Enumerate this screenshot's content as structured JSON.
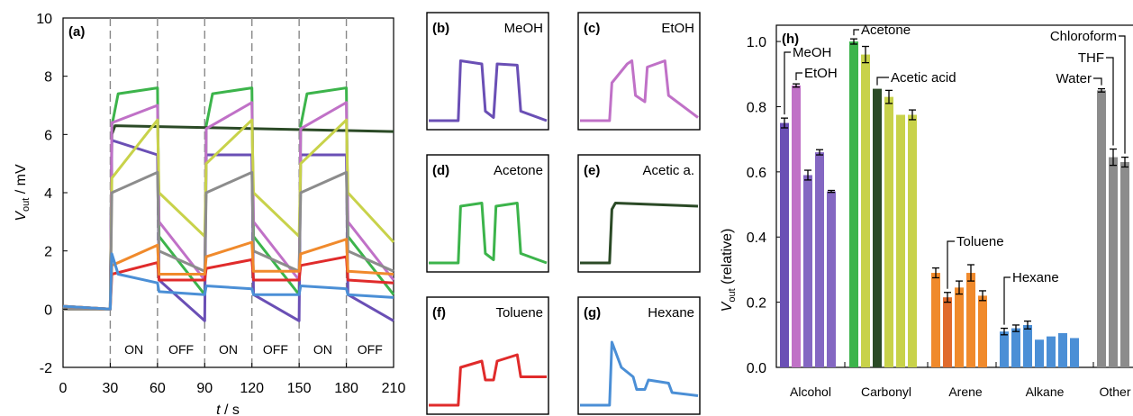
{
  "panel_a": {
    "label": "(a)",
    "ylabel_main": "V",
    "ylabel_sub": "out",
    "ylabel_unit": " / mV",
    "xlabel_main": "t",
    "xlabel_unit": " / s",
    "xticks": [
      "0",
      "30",
      "60",
      "90",
      "120",
      "150",
      "180",
      "210"
    ],
    "yticks": [
      "-2",
      "0",
      "2",
      "4",
      "6",
      "8",
      "10"
    ],
    "phases": [
      "ON",
      "OFF",
      "ON",
      "OFF",
      "ON",
      "OFF"
    ]
  },
  "small_panels": [
    {
      "label": "(b)",
      "name": "MeOH"
    },
    {
      "label": "(c)",
      "name": "EtOH"
    },
    {
      "label": "(d)",
      "name": "Acetone"
    },
    {
      "label": "(e)",
      "name": "Acetic a."
    },
    {
      "label": "(f)",
      "name": "Toluene"
    },
    {
      "label": "(g)",
      "name": "Hexane"
    }
  ],
  "panel_h": {
    "label": "(h)",
    "ylabel_main": "V",
    "ylabel_sub": "out",
    "ylabel_rest": " (relative)",
    "yticks": [
      "0.0",
      "0.2",
      "0.4",
      "0.6",
      "0.8",
      "1.0"
    ],
    "groups": [
      "Alcohol",
      "Carbonyl",
      "Arene",
      "Alkane",
      "Other"
    ],
    "annotations": [
      "MeOH",
      "EtOH",
      "Acetone",
      "Acetic acid",
      "Toluene",
      "Hexane",
      "Chloroform",
      "THF",
      "Water"
    ]
  },
  "chart_data": [
    {
      "type": "line",
      "title": "(a)",
      "xlabel": "t / s",
      "ylabel": "Vout / mV",
      "xlim": [
        0,
        210
      ],
      "ylim": [
        -2,
        10
      ],
      "grid": false,
      "note": "Vertical dashed lines mark ON/OFF switching every 30 s between 30 s and 210 s.",
      "series": [
        {
          "color": "#3cb44b",
          "values": [
            [
              0,
              0
            ],
            [
              30,
              0
            ],
            [
              31,
              6.3
            ],
            [
              35,
              7.4
            ],
            [
              60,
              7.6
            ],
            [
              61,
              2.5
            ],
            [
              90,
              0.5
            ],
            [
              91,
              6.3
            ],
            [
              95,
              7.4
            ],
            [
              120,
              7.6
            ],
            [
              121,
              2.5
            ],
            [
              150,
              0.5
            ],
            [
              151,
              6.3
            ],
            [
              155,
              7.4
            ],
            [
              180,
              7.6
            ],
            [
              181,
              2.5
            ],
            [
              210,
              0.5
            ]
          ]
        },
        {
          "color": "#2b4a26",
          "values": [
            [
              0,
              0.1
            ],
            [
              30,
              0
            ],
            [
              31,
              6.0
            ],
            [
              33,
              6.3
            ],
            [
              210,
              6.1
            ]
          ]
        },
        {
          "color": "#6a4fb5",
          "values": [
            [
              0,
              0
            ],
            [
              30,
              0
            ],
            [
              31,
              5.8
            ],
            [
              60,
              5.3
            ],
            [
              61,
              1
            ],
            [
              90,
              -0.4
            ],
            [
              91,
              5.3
            ],
            [
              120,
              5.3
            ],
            [
              121,
              0.5
            ],
            [
              150,
              -0.4
            ],
            [
              151,
              5.3
            ],
            [
              180,
              5.3
            ],
            [
              181,
              0.5
            ],
            [
              210,
              -0.4
            ]
          ]
        },
        {
          "color": "#c071c7",
          "values": [
            [
              0,
              0
            ],
            [
              30,
              0
            ],
            [
              31,
              6.4
            ],
            [
              60,
              7.0
            ],
            [
              61,
              3.0
            ],
            [
              90,
              1.0
            ],
            [
              91,
              6.2
            ],
            [
              120,
              7.1
            ],
            [
              121,
              3.0
            ],
            [
              150,
              1.0
            ],
            [
              151,
              6.2
            ],
            [
              180,
              7.1
            ],
            [
              181,
              3.0
            ],
            [
              210,
              1.0
            ]
          ]
        },
        {
          "color": "#c8d24a",
          "values": [
            [
              0,
              0
            ],
            [
              30,
              0
            ],
            [
              31,
              4.5
            ],
            [
              60,
              6.5
            ],
            [
              61,
              4.0
            ],
            [
              90,
              2.5
            ],
            [
              91,
              5.0
            ],
            [
              120,
              6.5
            ],
            [
              121,
              4.0
            ],
            [
              150,
              2.5
            ],
            [
              151,
              5.0
            ],
            [
              180,
              6.5
            ],
            [
              181,
              4.0
            ],
            [
              210,
              2.3
            ]
          ]
        },
        {
          "color": "#8c8c8c",
          "values": [
            [
              0,
              0
            ],
            [
              30,
              0
            ],
            [
              31,
              4.0
            ],
            [
              60,
              4.7
            ],
            [
              61,
              2.0
            ],
            [
              90,
              1.3
            ],
            [
              91,
              4.0
            ],
            [
              120,
              4.7
            ],
            [
              121,
              2.0
            ],
            [
              150,
              1.3
            ],
            [
              151,
              4.0
            ],
            [
              180,
              4.7
            ],
            [
              181,
              2.0
            ],
            [
              210,
              1.3
            ]
          ]
        },
        {
          "color": "#e02b2b",
          "values": [
            [
              0,
              0.1
            ],
            [
              30,
              0
            ],
            [
              31,
              1.2
            ],
            [
              60,
              1.6
            ],
            [
              61,
              1.0
            ],
            [
              90,
              1.0
            ],
            [
              91,
              1.4
            ],
            [
              120,
              1.7
            ],
            [
              121,
              1.0
            ],
            [
              150,
              1.0
            ],
            [
              151,
              1.5
            ],
            [
              180,
              1.8
            ],
            [
              181,
              1.0
            ],
            [
              210,
              0.9
            ]
          ]
        },
        {
          "color": "#f08a2c",
          "values": [
            [
              0,
              0.1
            ],
            [
              30,
              0
            ],
            [
              31,
              1.5
            ],
            [
              60,
              2.2
            ],
            [
              61,
              1.2
            ],
            [
              90,
              1.2
            ],
            [
              91,
              1.8
            ],
            [
              120,
              2.3
            ],
            [
              121,
              1.3
            ],
            [
              150,
              1.3
            ],
            [
              151,
              1.9
            ],
            [
              180,
              2.4
            ],
            [
              181,
              1.3
            ],
            [
              210,
              1.2
            ]
          ]
        },
        {
          "color": "#4b8fd6",
          "values": [
            [
              0,
              0.1
            ],
            [
              30,
              0
            ],
            [
              31,
              1.9
            ],
            [
              35,
              1.2
            ],
            [
              60,
              0.9
            ],
            [
              61,
              0.6
            ],
            [
              90,
              0.5
            ],
            [
              91,
              0.8
            ],
            [
              120,
              0.7
            ],
            [
              121,
              0.5
            ],
            [
              150,
              0.5
            ],
            [
              151,
              0.8
            ],
            [
              180,
              0.7
            ],
            [
              181,
              0.5
            ],
            [
              210,
              0.4
            ]
          ]
        }
      ]
    },
    {
      "type": "line",
      "title": "MeOH",
      "series": [
        {
          "color": "#6a4fb5",
          "values": [
            [
              0,
              0
            ],
            [
              25,
              0
            ],
            [
              27,
              0.95
            ],
            [
              45,
              0.9
            ],
            [
              48,
              0.15
            ],
            [
              55,
              0.05
            ],
            [
              58,
              0.9
            ],
            [
              75,
              0.88
            ],
            [
              78,
              0.15
            ],
            [
              100,
              0
            ]
          ]
        }
      ]
    },
    {
      "type": "line",
      "title": "EtOH",
      "series": [
        {
          "color": "#c071c7",
          "values": [
            [
              0,
              0
            ],
            [
              25,
              0
            ],
            [
              27,
              0.6
            ],
            [
              40,
              0.9
            ],
            [
              44,
              0.95
            ],
            [
              47,
              0.4
            ],
            [
              55,
              0.3
            ],
            [
              57,
              0.85
            ],
            [
              72,
              0.95
            ],
            [
              75,
              0.4
            ],
            [
              100,
              0.05
            ]
          ]
        }
      ]
    },
    {
      "type": "line",
      "title": "Acetone",
      "series": [
        {
          "color": "#3cb44b",
          "values": [
            [
              0,
              0
            ],
            [
              25,
              0
            ],
            [
              27,
              0.9
            ],
            [
              45,
              0.95
            ],
            [
              48,
              0.15
            ],
            [
              55,
              0.05
            ],
            [
              57,
              0.9
            ],
            [
              75,
              0.95
            ],
            [
              78,
              0.15
            ],
            [
              100,
              0
            ]
          ]
        }
      ]
    },
    {
      "type": "line",
      "title": "Acetic a.",
      "series": [
        {
          "color": "#2b4a26",
          "values": [
            [
              0,
              0
            ],
            [
              25,
              0
            ],
            [
              27,
              0.85
            ],
            [
              30,
              0.95
            ],
            [
              100,
              0.9
            ]
          ]
        }
      ]
    },
    {
      "type": "line",
      "title": "Toluene",
      "series": [
        {
          "color": "#e02b2b",
          "values": [
            [
              0,
              0
            ],
            [
              25,
              0
            ],
            [
              27,
              0.6
            ],
            [
              45,
              0.7
            ],
            [
              48,
              0.4
            ],
            [
              55,
              0.4
            ],
            [
              58,
              0.7
            ],
            [
              75,
              0.8
            ],
            [
              78,
              0.45
            ],
            [
              100,
              0.45
            ]
          ]
        }
      ]
    },
    {
      "type": "line",
      "title": "Hexane",
      "series": [
        {
          "color": "#4b8fd6",
          "values": [
            [
              0,
              0
            ],
            [
              25,
              0
            ],
            [
              27,
              1.0
            ],
            [
              35,
              0.6
            ],
            [
              45,
              0.45
            ],
            [
              48,
              0.25
            ],
            [
              55,
              0.25
            ],
            [
              58,
              0.4
            ],
            [
              75,
              0.35
            ],
            [
              78,
              0.2
            ],
            [
              100,
              0.15
            ]
          ]
        }
      ]
    },
    {
      "type": "bar",
      "title": "(h)",
      "ylabel": "Vout (relative)",
      "ylim": [
        0,
        1.05
      ],
      "categories": [
        "Alcohol",
        "Carbonyl",
        "Arene",
        "Alkane",
        "Other"
      ],
      "bars": [
        {
          "group": "Alcohol",
          "value": 0.75,
          "err": 0.015,
          "color": "#6a4fb5"
        },
        {
          "group": "Alcohol",
          "value": 0.865,
          "err": 0.005,
          "color": "#c071c7"
        },
        {
          "group": "Alcohol",
          "value": 0.59,
          "err": 0.015,
          "color": "#8467c2"
        },
        {
          "group": "Alcohol",
          "value": 0.66,
          "err": 0.008,
          "color": "#8467c2"
        },
        {
          "group": "Alcohol",
          "value": 0.54,
          "err": 0.003,
          "color": "#8467c2"
        },
        {
          "group": "Carbonyl",
          "value": 1.0,
          "err": 0.008,
          "color": "#3cb44b"
        },
        {
          "group": "Carbonyl",
          "value": 0.96,
          "err": 0.025,
          "color": "#c8d24a"
        },
        {
          "group": "Carbonyl",
          "value": 0.855,
          "err": 0.0,
          "color": "#2b4a26"
        },
        {
          "group": "Carbonyl",
          "value": 0.83,
          "err": 0.02,
          "color": "#c8d24a"
        },
        {
          "group": "Carbonyl",
          "value": 0.775,
          "err": 0.0,
          "color": "#c8d24a"
        },
        {
          "group": "Carbonyl",
          "value": 0.775,
          "err": 0.015,
          "color": "#c8d24a"
        },
        {
          "group": "Arene",
          "value": 0.29,
          "err": 0.015,
          "color": "#f08a2c"
        },
        {
          "group": "Arene",
          "value": 0.215,
          "err": 0.015,
          "color": "#e06a2c"
        },
        {
          "group": "Arene",
          "value": 0.245,
          "err": 0.02,
          "color": "#f08a2c"
        },
        {
          "group": "Arene",
          "value": 0.29,
          "err": 0.025,
          "color": "#f08a2c"
        },
        {
          "group": "Arene",
          "value": 0.22,
          "err": 0.015,
          "color": "#f08a2c"
        },
        {
          "group": "Alkane",
          "value": 0.11,
          "err": 0.01,
          "color": "#4b8fd6"
        },
        {
          "group": "Alkane",
          "value": 0.12,
          "err": 0.01,
          "color": "#4b8fd6"
        },
        {
          "group": "Alkane",
          "value": 0.13,
          "err": 0.012,
          "color": "#4b8fd6"
        },
        {
          "group": "Alkane",
          "value": 0.085,
          "err": 0.0,
          "color": "#4b8fd6"
        },
        {
          "group": "Alkane",
          "value": 0.095,
          "err": 0.0,
          "color": "#4b8fd6"
        },
        {
          "group": "Alkane",
          "value": 0.105,
          "err": 0.0,
          "color": "#4b8fd6"
        },
        {
          "group": "Alkane",
          "value": 0.09,
          "err": 0.0,
          "color": "#4b8fd6"
        },
        {
          "group": "Other",
          "value": 0.85,
          "err": 0.005,
          "color": "#8c8c8c"
        },
        {
          "group": "Other",
          "value": 0.645,
          "err": 0.025,
          "color": "#8c8c8c"
        },
        {
          "group": "Other",
          "value": 0.63,
          "err": 0.015,
          "color": "#8c8c8c"
        }
      ]
    }
  ]
}
